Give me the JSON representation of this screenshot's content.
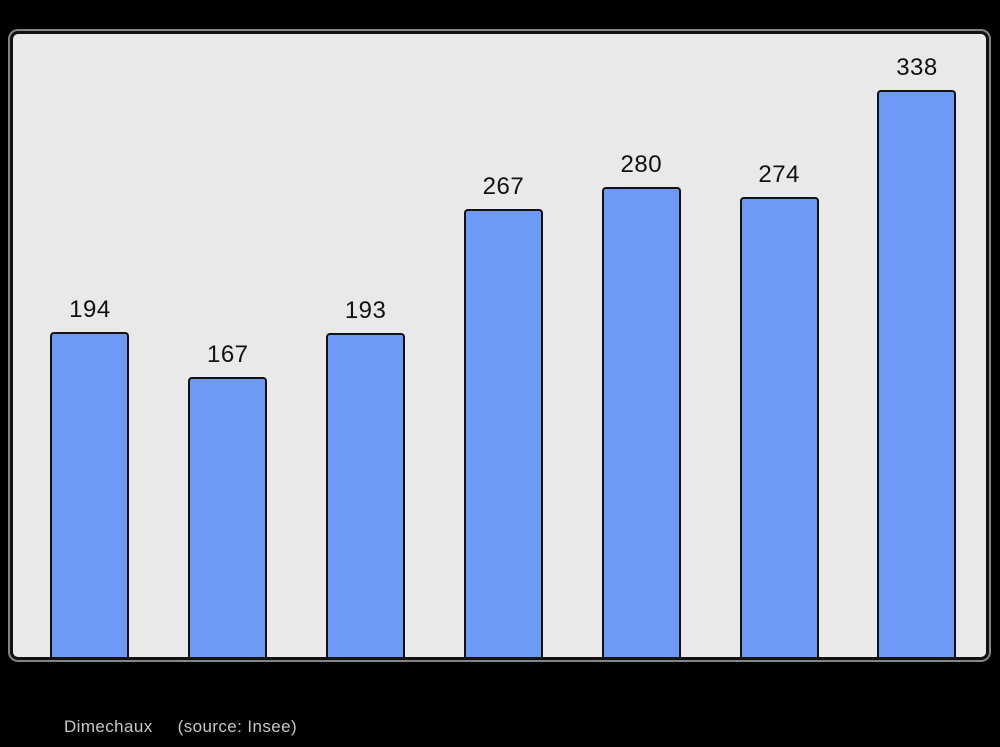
{
  "caption": {
    "commune": "Dimechaux",
    "source": "(source: Insee)"
  },
  "chart_data": {
    "type": "bar",
    "title": "",
    "xlabel": "",
    "ylabel": "",
    "categories": [
      "",
      "",
      "",
      "",
      "",
      "",
      ""
    ],
    "values": [
      194,
      167,
      193,
      267,
      280,
      274,
      338
    ],
    "data_labels": [
      "194",
      "167",
      "193",
      "267",
      "280",
      "274",
      "338"
    ],
    "ylim": [
      0,
      372
    ],
    "grid": false,
    "legend_position": "none",
    "data_labels_position": "above-bars"
  },
  "colors": {
    "page_background": "#000000",
    "plot_background": "#e9e9e9",
    "bar_fill": "#6e99f6",
    "bar_border": "#121212",
    "frame_border": "#121212",
    "frame_outline": "#ededed",
    "value_label": "#111111",
    "caption_text": "#c7c7c7"
  }
}
